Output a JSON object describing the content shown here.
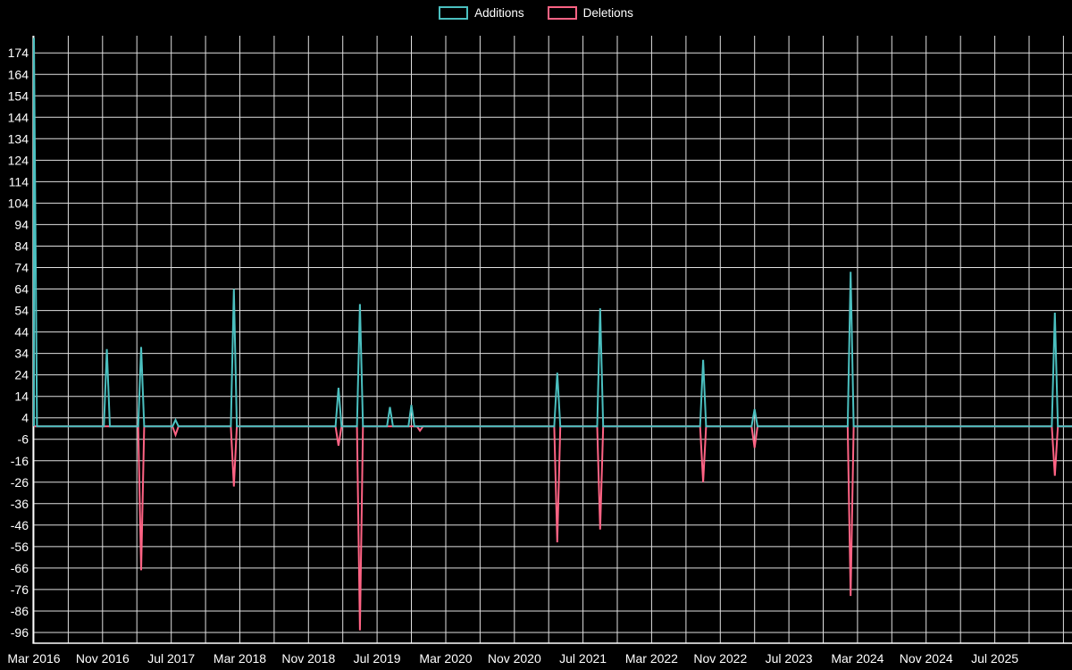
{
  "legend": {
    "items": [
      {
        "label": "Additions",
        "color": "#4bc0c0"
      },
      {
        "label": "Deletions",
        "color": "#ff6384"
      }
    ]
  },
  "chart_data": {
    "type": "line",
    "title": "",
    "xlabel": "",
    "ylabel": "",
    "background": "#000000",
    "grid": true,
    "grid_color": "#ffffff",
    "text_color": "#ffffff",
    "legend_position": "top",
    "x_axis": {
      "tick_labels": [
        "Mar 2016",
        "Nov 2016",
        "Jul 2017",
        "Mar 2018",
        "Nov 2018",
        "Jul 2019",
        "Mar 2020",
        "Nov 2020",
        "Jul 2021",
        "Mar 2022",
        "Nov 2022",
        "Jul 2023",
        "Mar 2024",
        "Nov 2024",
        "Jul 2025"
      ],
      "months_per_label": 8,
      "months_per_gridline": 4,
      "total_months": 121,
      "start": "Mar 2016"
    },
    "y_axis": {
      "tick_labels": [
        174,
        164,
        154,
        144,
        134,
        124,
        114,
        104,
        94,
        84,
        74,
        64,
        54,
        44,
        34,
        24,
        14,
        4,
        -6,
        -16,
        -26,
        -36,
        -46,
        -56,
        -66,
        -76,
        -86,
        -96
      ],
      "min": -101,
      "max": 182,
      "tick_step": 10
    },
    "series": [
      {
        "name": "Additions",
        "color": "#4bc0c0",
        "baseline": 0,
        "spikes": [
          {
            "month": 0,
            "value": 181
          },
          {
            "month": 8.5,
            "value": 36
          },
          {
            "month": 12.5,
            "value": 37
          },
          {
            "month": 16.5,
            "value": 3
          },
          {
            "month": 23.3,
            "value": 64
          },
          {
            "month": 35.5,
            "value": 18
          },
          {
            "month": 38,
            "value": 57
          },
          {
            "month": 41.5,
            "value": 9
          },
          {
            "month": 44,
            "value": 10
          },
          {
            "month": 61,
            "value": 25
          },
          {
            "month": 66,
            "value": 55
          },
          {
            "month": 78,
            "value": 31
          },
          {
            "month": 84,
            "value": 8
          },
          {
            "month": 95.2,
            "value": 72
          },
          {
            "month": 119,
            "value": 53
          }
        ]
      },
      {
        "name": "Deletions",
        "color": "#ff6384",
        "baseline": 0,
        "spikes": [
          {
            "month": 12.5,
            "value": -67
          },
          {
            "month": 16.5,
            "value": -4
          },
          {
            "month": 23.3,
            "value": -28
          },
          {
            "month": 35.5,
            "value": -9
          },
          {
            "month": 38,
            "value": -95
          },
          {
            "month": 45,
            "value": -2
          },
          {
            "month": 61,
            "value": -54
          },
          {
            "month": 66,
            "value": -48
          },
          {
            "month": 78,
            "value": -26
          },
          {
            "month": 84,
            "value": -10
          },
          {
            "month": 95.2,
            "value": -79
          },
          {
            "month": 119,
            "value": -23
          }
        ]
      }
    ]
  }
}
